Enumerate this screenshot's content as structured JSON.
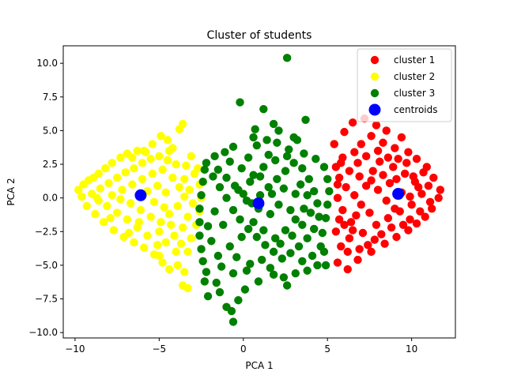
{
  "chart_data": {
    "type": "scatter",
    "title": "Cluster of students",
    "xlabel": "PCA 1",
    "ylabel": "PCA 2",
    "xlim": [
      -10.7,
      12.6
    ],
    "ylim": [
      -10.4,
      11.3
    ],
    "xticks": [
      -10,
      -5,
      0,
      5,
      10
    ],
    "yticks": [
      -10.0,
      -7.5,
      -5.0,
      -2.5,
      0.0,
      2.5,
      5.0,
      7.5,
      10.0
    ],
    "grid": false,
    "legend_position": "top-right",
    "series": [
      {
        "name": "cluster 1",
        "color": "#ff0000",
        "points": [
          [
            5.4,
            4.0
          ],
          [
            6.5,
            5.6
          ],
          [
            7.2,
            5.9
          ],
          [
            7.9,
            5.4
          ],
          [
            8.5,
            5.0
          ],
          [
            9.4,
            4.5
          ],
          [
            6.0,
            4.9
          ],
          [
            7.6,
            4.6
          ],
          [
            8.3,
            4.1
          ],
          [
            9.0,
            3.7
          ],
          [
            9.8,
            3.4
          ],
          [
            10.3,
            2.9
          ],
          [
            10.9,
            2.3
          ],
          [
            11.3,
            1.5
          ],
          [
            11.7,
            0.6
          ],
          [
            11.6,
            0.0
          ],
          [
            11.2,
            -0.8
          ],
          [
            10.8,
            -1.4
          ],
          [
            10.3,
            -1.9
          ],
          [
            9.8,
            -2.4
          ],
          [
            9.1,
            -2.9
          ],
          [
            8.4,
            -3.4
          ],
          [
            7.6,
            -4.0
          ],
          [
            6.8,
            -4.6
          ],
          [
            6.2,
            -5.3
          ],
          [
            5.6,
            -4.8
          ],
          [
            5.8,
            -3.6
          ],
          [
            6.3,
            -3.0
          ],
          [
            7.1,
            -2.6
          ],
          [
            7.9,
            -2.0
          ],
          [
            8.6,
            -1.5
          ],
          [
            9.3,
            -1.0
          ],
          [
            10.0,
            -0.5
          ],
          [
            10.6,
            0.3
          ],
          [
            10.2,
            1.2
          ],
          [
            9.6,
            1.8
          ],
          [
            8.9,
            2.3
          ],
          [
            8.1,
            2.7
          ],
          [
            7.3,
            3.1
          ],
          [
            6.6,
            3.4
          ],
          [
            5.9,
            3.0
          ],
          [
            5.5,
            2.3
          ],
          [
            5.7,
            1.5
          ],
          [
            6.1,
            0.8
          ],
          [
            6.6,
            0.2
          ],
          [
            7.0,
            -0.5
          ],
          [
            7.5,
            -1.1
          ],
          [
            8.0,
            0.6
          ],
          [
            8.7,
            1.1
          ],
          [
            9.4,
            0.4
          ],
          [
            6.4,
            -1.8
          ],
          [
            5.9,
            -0.9
          ],
          [
            5.6,
            0.0
          ],
          [
            6.9,
            1.6
          ],
          [
            7.7,
            2.0
          ],
          [
            8.5,
            -0.2
          ],
          [
            9.0,
            -0.8
          ],
          [
            10.4,
            0.8
          ],
          [
            11.0,
            0.9
          ],
          [
            9.7,
            2.6
          ],
          [
            6.2,
            -4.0
          ],
          [
            7.4,
            -3.5
          ],
          [
            8.8,
            -2.2
          ],
          [
            5.5,
            -2.5
          ],
          [
            6.0,
            -2.0
          ],
          [
            6.7,
            -1.3
          ],
          [
            7.3,
            0.9
          ],
          [
            6.3,
            2.0
          ],
          [
            5.8,
            2.6
          ],
          [
            7.0,
            4.0
          ],
          [
            8.0,
            3.5
          ],
          [
            8.6,
            3.0
          ],
          [
            9.2,
            2.9
          ],
          [
            10.1,
            1.6
          ],
          [
            10.7,
            1.9
          ],
          [
            11.1,
            -0.3
          ],
          [
            10.5,
            -1.0
          ],
          [
            9.9,
            -1.6
          ],
          [
            9.5,
            -2.0
          ],
          [
            8.2,
            -2.7
          ],
          [
            7.8,
            -3.1
          ],
          [
            6.9,
            -3.8
          ],
          [
            6.5,
            -2.4
          ],
          [
            5.7,
            -1.6
          ],
          [
            5.6,
            1.0
          ],
          [
            6.8,
            2.6
          ],
          [
            7.6,
            1.3
          ],
          [
            8.3,
            1.7
          ],
          [
            9.1,
            1.4
          ],
          [
            9.9,
            0.1
          ]
        ]
      },
      {
        "name": "cluster 2",
        "color": "#ffff00",
        "points": [
          [
            -9.8,
            0.6
          ],
          [
            -9.5,
            1.0
          ],
          [
            -9.2,
            1.3
          ],
          [
            -8.9,
            1.5
          ],
          [
            -8.6,
            1.8
          ],
          [
            -8.2,
            2.2
          ],
          [
            -7.8,
            2.6
          ],
          [
            -7.3,
            3.0
          ],
          [
            -6.9,
            3.3
          ],
          [
            -6.3,
            3.5
          ],
          [
            -5.8,
            3.4
          ],
          [
            -5.4,
            4.0
          ],
          [
            -4.9,
            4.6
          ],
          [
            -4.5,
            4.3
          ],
          [
            -3.6,
            5.5
          ],
          [
            -3.8,
            5.1
          ],
          [
            -4.2,
            3.7
          ],
          [
            -3.4,
            2.4
          ],
          [
            -2.9,
            1.8
          ],
          [
            -2.6,
            1.0
          ],
          [
            -2.5,
            0.0
          ],
          [
            -2.6,
            -1.0
          ],
          [
            -2.8,
            -2.0
          ],
          [
            -3.1,
            -3.0
          ],
          [
            -3.3,
            -4.0
          ],
          [
            -3.5,
            -5.5
          ],
          [
            -3.6,
            -6.5
          ],
          [
            -3.3,
            -6.7
          ],
          [
            -4.4,
            -5.3
          ],
          [
            -4.8,
            -4.8
          ],
          [
            -5.3,
            -4.2
          ],
          [
            -5.9,
            -3.7
          ],
          [
            -6.5,
            -3.3
          ],
          [
            -7.1,
            -2.9
          ],
          [
            -7.7,
            -2.4
          ],
          [
            -8.3,
            -1.8
          ],
          [
            -8.8,
            -1.2
          ],
          [
            -9.3,
            -0.6
          ],
          [
            -9.6,
            0.1
          ],
          [
            -9.0,
            0.3
          ],
          [
            -8.5,
            0.7
          ],
          [
            -8.0,
            1.1
          ],
          [
            -7.5,
            1.5
          ],
          [
            -7.0,
            1.9
          ],
          [
            -6.5,
            2.2
          ],
          [
            -6.0,
            2.6
          ],
          [
            -5.5,
            2.9
          ],
          [
            -5.0,
            3.1
          ],
          [
            -4.5,
            2.8
          ],
          [
            -4.0,
            2.5
          ],
          [
            -3.5,
            1.4
          ],
          [
            -3.2,
            0.6
          ],
          [
            -3.0,
            -0.4
          ],
          [
            -3.3,
            -1.4
          ],
          [
            -3.6,
            -2.2
          ],
          [
            -4.1,
            -2.8
          ],
          [
            -4.6,
            -3.3
          ],
          [
            -5.1,
            -3.5
          ],
          [
            -5.7,
            -2.8
          ],
          [
            -6.3,
            -2.2
          ],
          [
            -6.9,
            -1.6
          ],
          [
            -7.5,
            -1.1
          ],
          [
            -8.1,
            -0.6
          ],
          [
            -8.6,
            -0.2
          ],
          [
            -7.8,
            0.2
          ],
          [
            -7.2,
            0.6
          ],
          [
            -6.6,
            1.0
          ],
          [
            -6.0,
            1.4
          ],
          [
            -5.4,
            1.8
          ],
          [
            -4.8,
            2.1
          ],
          [
            -4.2,
            1.5
          ],
          [
            -3.8,
            0.8
          ],
          [
            -3.5,
            0.1
          ],
          [
            -3.9,
            -0.6
          ],
          [
            -4.4,
            -1.2
          ],
          [
            -4.9,
            -1.8
          ],
          [
            -5.5,
            -1.4
          ],
          [
            -6.1,
            -0.9
          ],
          [
            -6.7,
            -0.4
          ],
          [
            -7.3,
            -0.1
          ],
          [
            -5.7,
            0.5
          ],
          [
            -5.1,
            0.9
          ],
          [
            -4.6,
            0.4
          ],
          [
            -5.3,
            -0.3
          ],
          [
            -4.7,
            -0.7
          ],
          [
            -6.2,
            -1.8
          ],
          [
            -4.0,
            -4.0
          ],
          [
            -3.9,
            -5.0
          ],
          [
            -5.0,
            -4.3
          ],
          [
            -6.6,
            3.0
          ],
          [
            -5.9,
            3.5
          ],
          [
            -4.4,
            3.5
          ],
          [
            -3.7,
            -3.4
          ],
          [
            -4.3,
            -2.0
          ],
          [
            -2.7,
            2.2
          ],
          [
            -3.1,
            3.1
          ],
          [
            -7.9,
            -1.5
          ],
          [
            -8.7,
            0.0
          ],
          [
            -6.8,
            -2.6
          ],
          [
            -5.0,
            -2.5
          ]
        ]
      },
      {
        "name": "cluster 3",
        "color": "#008000",
        "points": [
          [
            2.6,
            10.4
          ],
          [
            -0.2,
            7.1
          ],
          [
            1.2,
            6.6
          ],
          [
            1.8,
            5.5
          ],
          [
            3.7,
            5.8
          ],
          [
            0.6,
            4.5
          ],
          [
            0.8,
            3.9
          ],
          [
            2.1,
            5.0
          ],
          [
            3.0,
            4.5
          ],
          [
            3.2,
            4.3
          ],
          [
            2.0,
            4.1
          ],
          [
            -0.6,
            3.8
          ],
          [
            -1.1,
            3.4
          ],
          [
            -1.7,
            3.1
          ],
          [
            -2.2,
            2.6
          ],
          [
            0.3,
            3.0
          ],
          [
            1.5,
            3.2
          ],
          [
            2.7,
            3.6
          ],
          [
            3.6,
            3.3
          ],
          [
            4.3,
            2.9
          ],
          [
            4.8,
            2.3
          ],
          [
            5.0,
            1.4
          ],
          [
            5.1,
            0.5
          ],
          [
            5.0,
            -0.5
          ],
          [
            4.9,
            -1.5
          ],
          [
            4.7,
            -2.6
          ],
          [
            4.6,
            -3.6
          ],
          [
            4.8,
            -4.0
          ],
          [
            4.9,
            -5.0
          ],
          [
            4.4,
            -5.0
          ],
          [
            3.8,
            -5.4
          ],
          [
            3.1,
            -5.6
          ],
          [
            2.4,
            -5.9
          ],
          [
            2.6,
            -6.5
          ],
          [
            1.8,
            -5.7
          ],
          [
            0.9,
            -6.2
          ],
          [
            0.1,
            -6.8
          ],
          [
            -0.3,
            -7.6
          ],
          [
            -1.0,
            -8.1
          ],
          [
            -1.4,
            -7.0
          ],
          [
            -0.7,
            -8.4
          ],
          [
            -0.6,
            -9.2
          ],
          [
            -2.1,
            -7.3
          ],
          [
            -1.6,
            -6.3
          ],
          [
            -2.2,
            -5.5
          ],
          [
            -2.4,
            -4.7
          ],
          [
            -2.5,
            -3.8
          ],
          [
            -2.6,
            -2.8
          ],
          [
            -2.6,
            -1.8
          ],
          [
            -2.6,
            -0.8
          ],
          [
            -2.5,
            0.2
          ],
          [
            -2.4,
            1.2
          ],
          [
            -2.3,
            2.1
          ],
          [
            -1.8,
            1.6
          ],
          [
            -1.4,
            0.8
          ],
          [
            -1.0,
            0.0
          ],
          [
            -0.6,
            -0.9
          ],
          [
            -0.2,
            -1.6
          ],
          [
            0.3,
            -2.3
          ],
          [
            0.8,
            -2.9
          ],
          [
            1.3,
            -3.5
          ],
          [
            1.8,
            -4.0
          ],
          [
            2.3,
            -4.5
          ],
          [
            2.8,
            -4.1
          ],
          [
            3.3,
            -3.6
          ],
          [
            3.8,
            -3.0
          ],
          [
            4.2,
            -2.3
          ],
          [
            4.5,
            -1.4
          ],
          [
            4.4,
            -0.4
          ],
          [
            4.2,
            0.5
          ],
          [
            3.9,
            1.4
          ],
          [
            3.5,
            2.2
          ],
          [
            3.0,
            2.6
          ],
          [
            2.5,
            2.0
          ],
          [
            2.0,
            1.4
          ],
          [
            1.5,
            0.8
          ],
          [
            1.0,
            0.2
          ],
          [
            0.5,
            -0.4
          ],
          [
            0.0,
            0.3
          ],
          [
            -0.5,
            0.9
          ],
          [
            -1.0,
            1.5
          ],
          [
            -1.5,
            2.1
          ],
          [
            -0.8,
            2.7
          ],
          [
            -0.1,
            2.2
          ],
          [
            0.6,
            1.7
          ],
          [
            1.2,
            2.3
          ],
          [
            1.9,
            2.8
          ],
          [
            2.6,
            3.1
          ],
          [
            3.4,
            1.0
          ],
          [
            3.8,
            0.2
          ],
          [
            3.6,
            -0.8
          ],
          [
            3.1,
            -1.6
          ],
          [
            2.5,
            -2.4
          ],
          [
            1.9,
            -3.0
          ],
          [
            1.2,
            -2.4
          ],
          [
            0.6,
            -1.8
          ],
          [
            -0.1,
            -2.9
          ],
          [
            -0.8,
            -3.6
          ],
          [
            -1.5,
            -4.3
          ],
          [
            -1.9,
            -3.2
          ],
          [
            -2.1,
            -2.1
          ],
          [
            -1.7,
            -1.0
          ],
          [
            -1.2,
            -2.0
          ],
          [
            -0.4,
            -4.4
          ],
          [
            0.4,
            -4.9
          ],
          [
            1.1,
            -4.6
          ],
          [
            1.6,
            -5.2
          ],
          [
            2.2,
            -3.4
          ],
          [
            2.9,
            -2.8
          ],
          [
            3.5,
            -2.0
          ],
          [
            4.0,
            -1.1
          ],
          [
            2.1,
            -0.5
          ],
          [
            1.6,
            -1.2
          ],
          [
            0.9,
            -0.8
          ],
          [
            0.2,
            -0.2
          ],
          [
            -0.3,
            0.6
          ],
          [
            0.4,
            1.2
          ],
          [
            1.0,
            1.6
          ],
          [
            1.7,
            0.3
          ],
          [
            2.4,
            0.7
          ],
          [
            3.1,
            0.3
          ],
          [
            2.8,
            -0.9
          ],
          [
            -1.3,
            -5.1
          ],
          [
            -0.6,
            -5.6
          ],
          [
            0.2,
            -5.4
          ],
          [
            -2.3,
            -6.2
          ],
          [
            4.1,
            -4.3
          ],
          [
            3.5,
            -4.7
          ],
          [
            0.7,
            5.1
          ],
          [
            1.4,
            4.3
          ]
        ]
      },
      {
        "name": "centroids",
        "color": "#0000ff",
        "points": [
          [
            -6.1,
            0.2
          ],
          [
            0.9,
            -0.4
          ],
          [
            9.2,
            0.3
          ]
        ]
      }
    ]
  }
}
